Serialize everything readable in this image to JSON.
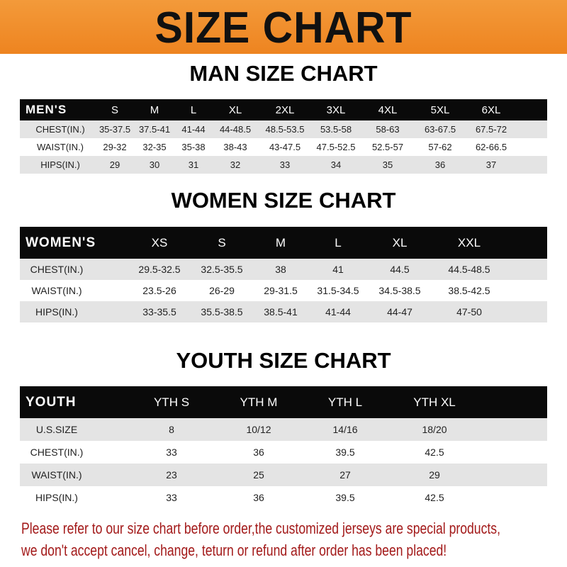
{
  "title": "SIZE CHART",
  "colors": {
    "banner": "#ee8420",
    "header_row": "#0a0a0a",
    "striped_row": "#e4e4e4",
    "notice_text": "#a31a1a"
  },
  "men": {
    "title": "MAN SIZE CHART",
    "header": [
      "MEN'S",
      "S",
      "M",
      "L",
      "XL",
      "2XL",
      "3XL",
      "4XL",
      "5XL",
      "6XL"
    ],
    "rows": [
      [
        "CHEST(IN.)",
        "35-37.5",
        "37.5-41",
        "41-44",
        "44-48.5",
        "48.5-53.5",
        "53.5-58",
        "58-63",
        "63-67.5",
        "67.5-72"
      ],
      [
        "WAIST(IN.)",
        "29-32",
        "32-35",
        "35-38",
        "38-43",
        "43-47.5",
        "47.5-52.5",
        "52.5-57",
        "57-62",
        "62-66.5"
      ],
      [
        "HIPS(IN.)",
        "29",
        "30",
        "31",
        "32",
        "33",
        "34",
        "35",
        "36",
        "37"
      ]
    ]
  },
  "women": {
    "title": "WOMEN SIZE CHART",
    "header": [
      "WOMEN'S",
      "XS",
      "S",
      "M",
      "L",
      "XL",
      "XXL"
    ],
    "rows": [
      [
        "CHEST(IN.)",
        "29.5-32.5",
        "32.5-35.5",
        "38",
        "41",
        "44.5",
        "44.5-48.5"
      ],
      [
        "WAIST(IN.)",
        "23.5-26",
        "26-29",
        "29-31.5",
        "31.5-34.5",
        "34.5-38.5",
        "38.5-42.5"
      ],
      [
        "HIPS(IN.)",
        "33-35.5",
        "35.5-38.5",
        "38.5-41",
        "41-44",
        "44-47",
        "47-50"
      ]
    ]
  },
  "youth": {
    "title": "YOUTH SIZE CHART",
    "header": [
      "YOUTH",
      "YTH S",
      "YTH M",
      "YTH L",
      "YTH XL"
    ],
    "rows": [
      [
        "U.S.SIZE",
        "8",
        "10/12",
        "14/16",
        "18/20"
      ],
      [
        "CHEST(IN.)",
        "33",
        "36",
        "39.5",
        "42.5"
      ],
      [
        "WAIST(IN.)",
        "23",
        "25",
        "27",
        "29"
      ],
      [
        "HIPS(IN.)",
        "33",
        "36",
        "39.5",
        "42.5"
      ]
    ]
  },
  "notice": [
    "Please refer to our size chart before order,the customized jerseys are special products,",
    "we don't accept cancel, change, teturn or refund after order has been placed!"
  ]
}
